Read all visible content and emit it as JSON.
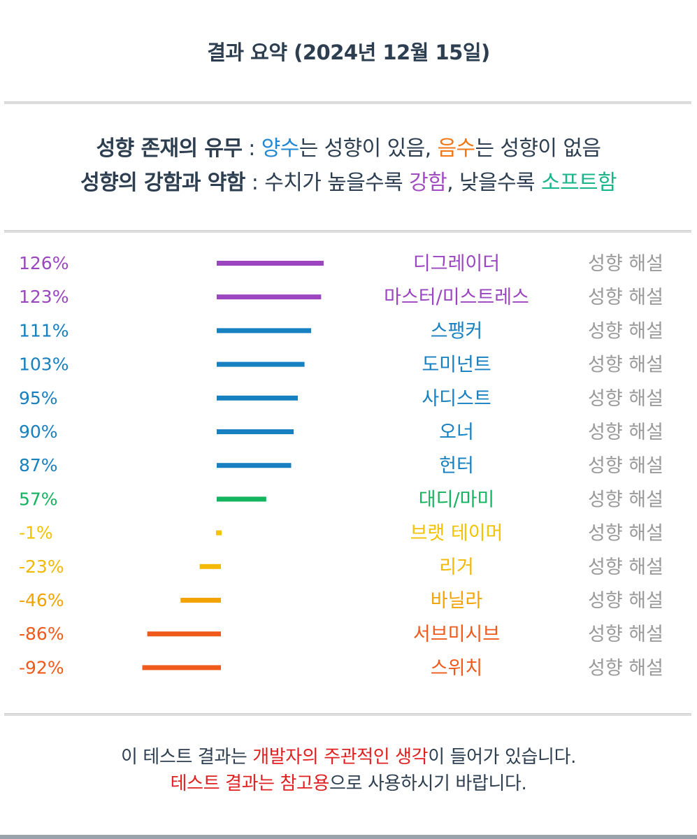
{
  "header": {
    "title": "결과 요약 (2024년 12월 15일)"
  },
  "legend": {
    "line1": {
      "key": "성향 존재의 유무",
      "sep": " : ",
      "positive": "양수",
      "positive_rest": "는 성향이 있음, ",
      "negative": "음수",
      "negative_rest": "는 성향이 없음"
    },
    "line2": {
      "key": "성향의 강함과 약함",
      "sep": " : ",
      "pre": "수치가 높을수록 ",
      "strong": "강함",
      "mid": ", 낮을수록 ",
      "soft": "소프트함"
    }
  },
  "chart_data": {
    "type": "bar",
    "orientation": "horizontal",
    "value_unit": "%",
    "categories": [
      "디그레이더",
      "마스터/미스트레스",
      "스팽커",
      "도미넌트",
      "사디스트",
      "오너",
      "헌터",
      "대디/마미",
      "브랫 테이머",
      "리거",
      "바닐라",
      "서브미시브",
      "스위치"
    ],
    "values": [
      126,
      123,
      111,
      103,
      95,
      90,
      87,
      57,
      -1,
      -23,
      -46,
      -86,
      -92
    ],
    "value_labels": [
      "126%",
      "123%",
      "111%",
      "103%",
      "95%",
      "90%",
      "87%",
      "57%",
      "-1%",
      "-23%",
      "-46%",
      "-86%",
      "-92%"
    ],
    "colors": [
      "#9b45c0",
      "#9b45c0",
      "#1680c0",
      "#1680c0",
      "#1680c0",
      "#1680c0",
      "#1680c0",
      "#14b35e",
      "#f3c200",
      "#f3b800",
      "#f2a300",
      "#ef5a1a",
      "#ef5a1a"
    ],
    "action_label": "성향 해설",
    "grid": false
  },
  "footer": {
    "line1_pre": "이 테스트 결과는 ",
    "line1_red": "개발자의 주관적인 생각",
    "line1_post": "이 들어가 있습니다.",
    "line2_red": "테스트 결과는 참고용",
    "line2_post": "으로 사용하시기 바랍니다."
  }
}
